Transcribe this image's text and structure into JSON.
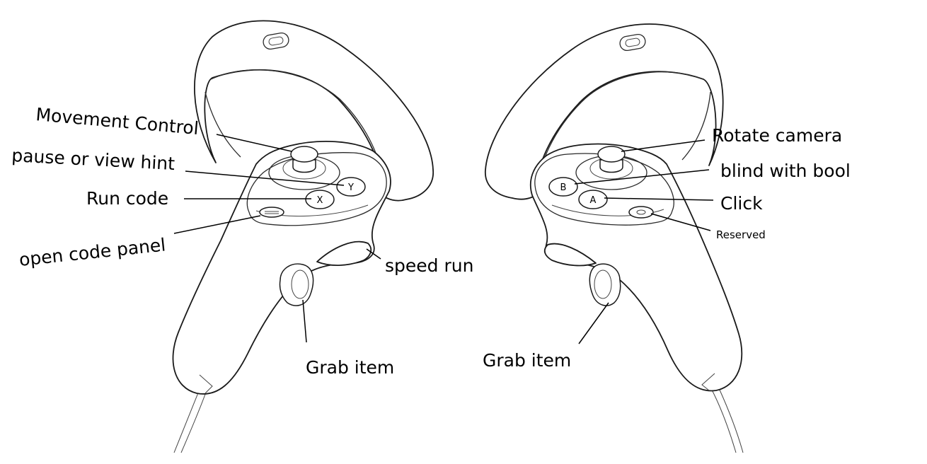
{
  "left_controller": {
    "labels": {
      "movement_control": "Movement Control",
      "pause_or_view_hint": "pause or view hint",
      "run_code": "Run code",
      "open_code_panel": "open code panel",
      "speed_run": "speed run",
      "grab_item": "Grab item"
    },
    "buttons": {
      "y": "Y",
      "x": "X"
    }
  },
  "right_controller": {
    "labels": {
      "rotate_camera": "Rotate camera",
      "blind_with_bool": "blind with bool",
      "click": "Click",
      "reserved": "Reserved",
      "grab_item": "Grab item"
    },
    "buttons": {
      "b": "B",
      "a": "A"
    }
  },
  "colors": {
    "line": "#000000",
    "background": "#ffffff"
  }
}
